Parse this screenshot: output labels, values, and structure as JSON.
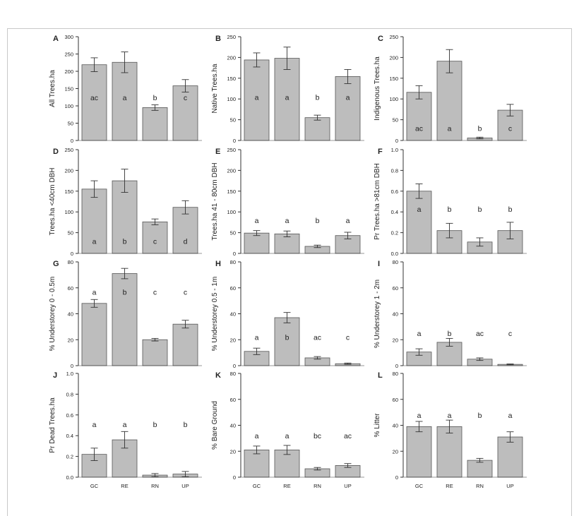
{
  "figure": {
    "x_categories": [
      "GC",
      "RE",
      "RN",
      "UP"
    ]
  },
  "chart_data": [
    {
      "panel": "A",
      "type": "bar",
      "ylabel": "All Trees.ha",
      "ylim": [
        0,
        300
      ],
      "yticks": [
        0,
        50,
        100,
        150,
        200,
        250,
        300
      ],
      "categories": [
        "GC",
        "RE",
        "RN",
        "UP"
      ],
      "values": [
        219,
        226,
        95,
        158
      ],
      "errors": [
        20,
        30,
        8,
        18
      ],
      "letters": [
        "ac",
        "a",
        "b",
        "c"
      ],
      "letter_y": 125
    },
    {
      "panel": "B",
      "type": "bar",
      "ylabel": "Native Trees.ha",
      "ylim": [
        0,
        250
      ],
      "yticks": [
        0,
        50,
        100,
        150,
        200,
        250
      ],
      "categories": [
        "GC",
        "RE",
        "RN",
        "UP"
      ],
      "values": [
        194,
        198,
        55,
        154
      ],
      "errors": [
        17,
        27,
        6,
        17
      ],
      "letters": [
        "a",
        "a",
        "b",
        "a"
      ],
      "letter_y": 105
    },
    {
      "panel": "C",
      "type": "bar",
      "ylabel": "Indigenous Trees.ha",
      "ylim": [
        0,
        250
      ],
      "yticks": [
        0,
        50,
        100,
        150,
        200,
        250
      ],
      "categories": [
        "GC",
        "RE",
        "RN",
        "UP"
      ],
      "values": [
        116,
        191,
        6,
        73
      ],
      "errors": [
        16,
        28,
        2,
        14
      ],
      "letters": [
        "ac",
        "a",
        "b",
        "c"
      ],
      "letter_y": 30
    },
    {
      "panel": "D",
      "type": "bar",
      "ylabel": "Trees.ha <40cm DBH",
      "ylim": [
        0,
        250
      ],
      "yticks": [
        0,
        50,
        100,
        150,
        200,
        250
      ],
      "categories": [
        "GC",
        "RE",
        "RN",
        "UP"
      ],
      "values": [
        155,
        175,
        76,
        111
      ],
      "errors": [
        20,
        28,
        7,
        16
      ],
      "letters": [
        "a",
        "b",
        "c",
        "d"
      ],
      "letter_y": 30
    },
    {
      "panel": "E",
      "type": "bar",
      "ylabel": "Trees.ha 41 - 80cm DBH",
      "ylim": [
        0,
        250
      ],
      "yticks": [
        0,
        50,
        100,
        150,
        200,
        250
      ],
      "categories": [
        "GC",
        "RE",
        "RN",
        "UP"
      ],
      "values": [
        49,
        47,
        17,
        43
      ],
      "errors": [
        6,
        7,
        3,
        8
      ],
      "letters": [
        "a",
        "a",
        "b",
        "a"
      ],
      "letter_y": 80
    },
    {
      "panel": "F",
      "type": "bar",
      "ylabel": "Pr Trees.ha >81cm DBH",
      "ylim": [
        0,
        1.0
      ],
      "yticks": [
        0.0,
        0.2,
        0.4,
        0.6,
        0.8,
        1.0
      ],
      "categories": [
        "GC",
        "RE",
        "RN",
        "UP"
      ],
      "values": [
        0.6,
        0.22,
        0.11,
        0.22
      ],
      "errors": [
        0.07,
        0.07,
        0.04,
        0.08
      ],
      "letters": [
        "a",
        "b",
        "b",
        "b"
      ],
      "letter_y": 0.43
    },
    {
      "panel": "G",
      "type": "bar",
      "ylabel": "% Understorey 0 - 0.5m",
      "ylim": [
        0,
        80
      ],
      "yticks": [
        0,
        20,
        40,
        60,
        80
      ],
      "categories": [
        "GC",
        "RE",
        "RN",
        "UP"
      ],
      "values": [
        48,
        71,
        20,
        32
      ],
      "errors": [
        3,
        4,
        1,
        3
      ],
      "letters": [
        "a",
        "b",
        "c",
        "c"
      ],
      "letter_y": 57
    },
    {
      "panel": "H",
      "type": "bar",
      "ylabel": "% Understorey 0.5 - 1m",
      "ylim": [
        0,
        80
      ],
      "yticks": [
        0,
        20,
        40,
        60,
        80
      ],
      "categories": [
        "GC",
        "RE",
        "RN",
        "UP"
      ],
      "values": [
        11,
        37,
        6,
        1.5
      ],
      "errors": [
        2.5,
        4,
        1,
        0.5
      ],
      "letters": [
        "a",
        "b",
        "ac",
        "c"
      ],
      "letter_y": 22
    },
    {
      "panel": "I",
      "type": "bar",
      "ylabel": "% Understorey 1 - 2m",
      "ylim": [
        0,
        80
      ],
      "yticks": [
        0,
        20,
        40,
        60,
        80
      ],
      "categories": [
        "GC",
        "RE",
        "RN",
        "UP"
      ],
      "values": [
        10.5,
        18,
        5,
        1
      ],
      "errors": [
        2.5,
        3,
        1,
        0.3
      ],
      "letters": [
        "a",
        "b",
        "ac",
        "c"
      ],
      "letter_y": 25
    },
    {
      "panel": "J",
      "type": "bar",
      "ylabel": "Pr Dead Trees.ha",
      "ylim": [
        0,
        1.0
      ],
      "yticks": [
        0.0,
        0.2,
        0.4,
        0.6,
        0.8,
        1.0
      ],
      "categories": [
        "GC",
        "RE",
        "RN",
        "UP"
      ],
      "values": [
        0.22,
        0.36,
        0.02,
        0.03
      ],
      "errors": [
        0.06,
        0.08,
        0.015,
        0.025
      ],
      "letters": [
        "a",
        "a",
        "b",
        "b"
      ],
      "letter_y": 0.51
    },
    {
      "panel": "K",
      "type": "bar",
      "ylabel": "% Bare Ground",
      "ylim": [
        0,
        80
      ],
      "yticks": [
        0,
        20,
        40,
        60,
        80
      ],
      "categories": [
        "GC",
        "RE",
        "RN",
        "UP"
      ],
      "values": [
        21,
        21,
        6.5,
        9
      ],
      "errors": [
        3,
        3.5,
        1,
        1.5
      ],
      "letters": [
        "a",
        "a",
        "bc",
        "ac"
      ],
      "letter_y": 32
    },
    {
      "panel": "L",
      "type": "bar",
      "ylabel": "% Litter",
      "ylim": [
        0,
        80
      ],
      "yticks": [
        0,
        20,
        40,
        60,
        80
      ],
      "categories": [
        "GC",
        "RE",
        "RN",
        "UP"
      ],
      "values": [
        39,
        39,
        13,
        31
      ],
      "errors": [
        4,
        5,
        1.5,
        4
      ],
      "letters": [
        "a",
        "a",
        "b",
        "a"
      ],
      "letter_y": 48
    }
  ]
}
